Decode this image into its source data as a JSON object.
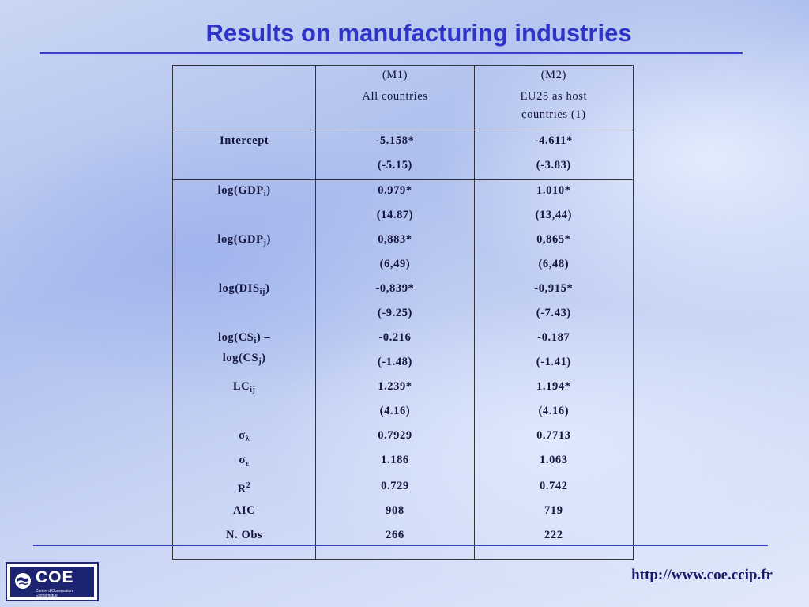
{
  "slide": {
    "title": "Results on manufacturing industries",
    "url": "http://www.coe.ccip.fr"
  },
  "logo": {
    "text": "COE",
    "subtitle": "Centre d'Observation Economique"
  },
  "table": {
    "columns": [
      {
        "id": "(M1)",
        "desc": "All countries"
      },
      {
        "id": "(M2)",
        "desc_line1": "EU25 as host",
        "desc_line2": "countries (1)"
      }
    ],
    "intercept": {
      "label": "Intercept",
      "m1": "-5.158*",
      "m1_t": "(-5.15)",
      "m2": "-4.611*",
      "m2_t": "(-3.83)"
    },
    "gdp_i": {
      "label": "log(GDP",
      "sub": "i",
      "close": ")",
      "m1": "0.979*",
      "m1_t": "(14.87)",
      "m2": "1.010*",
      "m2_t": "(13,44)"
    },
    "gdp_j": {
      "label": "log(GDP",
      "sub": "j",
      "close": ")",
      "m1": "0,883*",
      "m1_t": "(6,49)",
      "m2": "0,865*",
      "m2_t": "(6,48)"
    },
    "dis": {
      "label": "log(DIS",
      "sub": "ij",
      "close": ")",
      "m1": "-0,839*",
      "m1_t": "(-9.25)",
      "m2": "-0,915*",
      "m2_t": "(-7.43)"
    },
    "cs": {
      "label_a": "log(CS",
      "sub_a": "i",
      "close_a": ") –",
      "label_b": "log(CS",
      "sub_b": "j",
      "close_b": ")",
      "m1": "-0.216",
      "m1_t": "(-1.48)",
      "m2": "-0.187",
      "m2_t": "(-1.41)"
    },
    "lc": {
      "label": "LC",
      "sub": "ij",
      "m1": "1.239*",
      "m1_t": "(4.16)",
      "m2": "1.194*",
      "m2_t": "(4.16)"
    },
    "sigma_lambda": {
      "sym": "σ",
      "sub": "λ",
      "m1": "0.7929",
      "m2": "0.7713"
    },
    "sigma_eps": {
      "sym": "σ",
      "sub": "ε",
      "m1": "1.186",
      "m2": "1.063"
    },
    "r2": {
      "label": "R",
      "sup": "2",
      "m1": "0.729",
      "m2": "0.742"
    },
    "aic": {
      "label": "AIC",
      "m1": "908",
      "m2": "719"
    },
    "nobs": {
      "label": "N. Obs",
      "m1": "266",
      "m2": "222"
    }
  }
}
